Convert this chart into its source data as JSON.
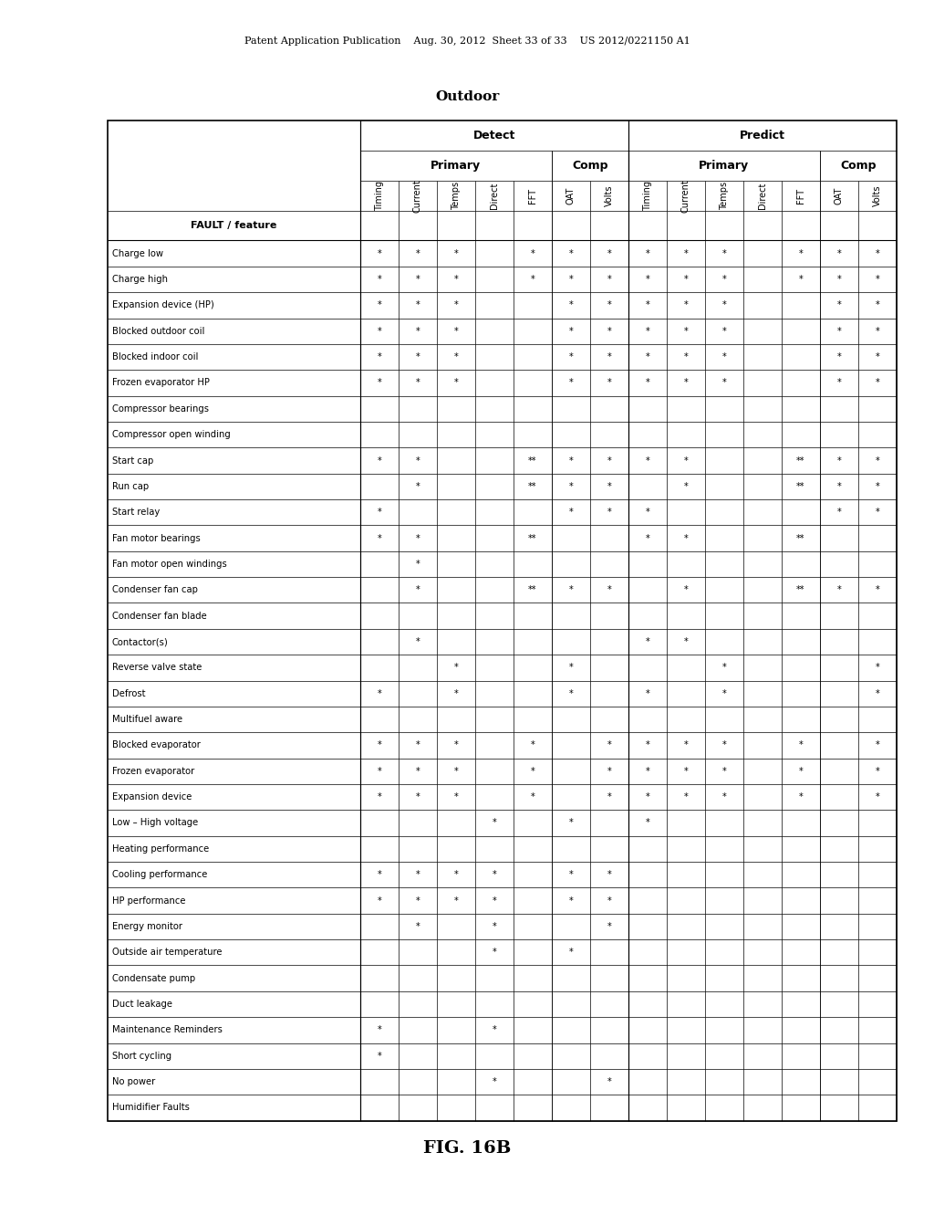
{
  "title_top": "Patent Application Publication    Aug. 30, 2012  Sheet 33 of 33    US 2012/0221150 A1",
  "outdoor_label": "Outdoor",
  "figure_label": "FIG. 16B",
  "detect_label": "Detect",
  "predict_label": "Predict",
  "primary_label": "Primary",
  "comp_label": "Comp",
  "col_headers": [
    "Timing",
    "Current",
    "Temps",
    "Direct",
    "FFT",
    "OAT",
    "Volts",
    "Timing",
    "Current",
    "Temps",
    "Direct",
    "FFT",
    "OAT",
    "Volts"
  ],
  "fault_header": "FAULT / feature",
  "faults": [
    "Charge low",
    "Charge high",
    "Expansion device (HP)",
    "Blocked outdoor coil",
    "Blocked indoor coil",
    "Frozen evaporator HP",
    "Compressor bearings",
    "Compressor open winding",
    "Start cap",
    "Run cap",
    "Start relay",
    "Fan motor bearings",
    "Fan motor open windings",
    "Condenser fan cap",
    "Condenser fan blade",
    "Contactor(s)",
    "Reverse valve state",
    "Defrost",
    "Multifuel aware",
    "Blocked evaporator",
    "Frozen evaporator",
    "Expansion device",
    "Low – High voltage",
    "Heating performance",
    "Cooling performance",
    "HP performance",
    "Energy monitor",
    "Outside air temperature",
    "Condensate pump",
    "Duct leakage",
    "Maintenance Reminders",
    "Short cycling",
    "No power",
    "Humidifier Faults"
  ],
  "table_data": [
    [
      "*",
      "*",
      "*",
      "",
      "*",
      "*",
      "*",
      "*",
      "*",
      "*",
      "",
      "*",
      "*",
      "*"
    ],
    [
      "*",
      "*",
      "*",
      "",
      "*",
      "*",
      "*",
      "*",
      "*",
      "*",
      "",
      "*",
      "*",
      "*"
    ],
    [
      "*",
      "*",
      "*",
      "",
      "",
      "*",
      "*",
      "*",
      "*",
      "*",
      "",
      "",
      "*",
      "*"
    ],
    [
      "*",
      "*",
      "*",
      "",
      "",
      "*",
      "*",
      "*",
      "*",
      "*",
      "",
      "",
      "*",
      "*"
    ],
    [
      "*",
      "*",
      "*",
      "",
      "",
      "*",
      "*",
      "*",
      "*",
      "*",
      "",
      "",
      "*",
      "*"
    ],
    [
      "*",
      "*",
      "*",
      "",
      "",
      "*",
      "*",
      "*",
      "*",
      "*",
      "",
      "",
      "*",
      "*"
    ],
    [
      "",
      "",
      "",
      "",
      "",
      "",
      "",
      "",
      "",
      "",
      "",
      "",
      "",
      ""
    ],
    [
      "",
      "",
      "",
      "",
      "",
      "",
      "",
      "",
      "",
      "",
      "",
      "",
      "",
      ""
    ],
    [
      "*",
      "*",
      "",
      "",
      "**",
      "*",
      "*",
      "*",
      "*",
      "",
      "",
      "**",
      "*",
      "*"
    ],
    [
      "",
      "*",
      "",
      "",
      "**",
      "*",
      "*",
      "",
      "*",
      "",
      "",
      "**",
      "*",
      "*"
    ],
    [
      "*",
      "",
      "",
      "",
      "",
      "*",
      "*",
      "*",
      "",
      "",
      "",
      "",
      "*",
      "*"
    ],
    [
      "*",
      "*",
      "",
      "",
      "**",
      "",
      "",
      "*",
      "*",
      "",
      "",
      "**",
      "",
      ""
    ],
    [
      "",
      "*",
      "",
      "",
      "",
      "",
      "",
      "",
      "",
      "",
      "",
      "",
      "",
      ""
    ],
    [
      "",
      "*",
      "",
      "",
      "**",
      "*",
      "*",
      "",
      "*",
      "",
      "",
      "**",
      "*",
      "*"
    ],
    [
      "",
      "",
      "",
      "",
      "",
      "",
      "",
      "",
      "",
      "",
      "",
      "",
      "",
      ""
    ],
    [
      "",
      "*",
      "",
      "",
      "",
      "",
      "",
      "*",
      "*",
      "",
      "",
      "",
      "",
      ""
    ],
    [
      "",
      "",
      "*",
      "",
      "",
      "*",
      "",
      "",
      "",
      "*",
      "",
      "",
      "",
      "*"
    ],
    [
      "*",
      "",
      "*",
      "",
      "",
      "*",
      "",
      "*",
      "",
      "*",
      "",
      "",
      "",
      "*"
    ],
    [
      "",
      "",
      "",
      "",
      "",
      "",
      "",
      "",
      "",
      "",
      "",
      "",
      "",
      ""
    ],
    [
      "*",
      "*",
      "*",
      "",
      "*",
      "",
      "*",
      "*",
      "*",
      "*",
      "",
      "*",
      "",
      "*"
    ],
    [
      "*",
      "*",
      "*",
      "",
      "*",
      "",
      "*",
      "*",
      "*",
      "*",
      "",
      "*",
      "",
      "*"
    ],
    [
      "*",
      "*",
      "*",
      "",
      "*",
      "",
      "*",
      "*",
      "*",
      "*",
      "",
      "*",
      "",
      "*"
    ],
    [
      "",
      "",
      "",
      "*",
      "",
      "*",
      "",
      "*",
      "",
      "",
      "",
      "",
      "",
      ""
    ],
    [
      "",
      "",
      "",
      "",
      "",
      "",
      "",
      "",
      "",
      "",
      "",
      "",
      "",
      ""
    ],
    [
      "*",
      "*",
      "*",
      "*",
      "",
      "*",
      "*",
      "",
      "",
      "",
      "",
      "",
      "",
      ""
    ],
    [
      "*",
      "*",
      "*",
      "*",
      "",
      "*",
      "*",
      "",
      "",
      "",
      "",
      "",
      "",
      ""
    ],
    [
      "",
      "*",
      "",
      "*",
      "",
      "",
      "*",
      "",
      "",
      "",
      "",
      "",
      "",
      ""
    ],
    [
      "",
      "",
      "",
      "*",
      "",
      "*",
      "",
      "",
      "",
      "",
      "",
      "",
      "",
      ""
    ],
    [
      "",
      "",
      "",
      "",
      "",
      "",
      "",
      "",
      "",
      "",
      "",
      "",
      "",
      ""
    ],
    [
      "",
      "",
      "",
      "",
      "",
      "",
      "",
      "",
      "",
      "",
      "",
      "",
      "",
      ""
    ],
    [
      "*",
      "",
      "",
      "*",
      "",
      "",
      "",
      "",
      "",
      "",
      "",
      "",
      "",
      ""
    ],
    [
      "*",
      "",
      "",
      "",
      "",
      "",
      "",
      "",
      "",
      "",
      "",
      "",
      "",
      ""
    ],
    [
      "",
      "",
      "",
      "*",
      "",
      "",
      "*",
      "",
      "",
      "",
      "",
      "",
      "",
      ""
    ],
    [
      "",
      "",
      "",
      "",
      "",
      "",
      "",
      "",
      "",
      "",
      "",
      "",
      "",
      ""
    ]
  ]
}
